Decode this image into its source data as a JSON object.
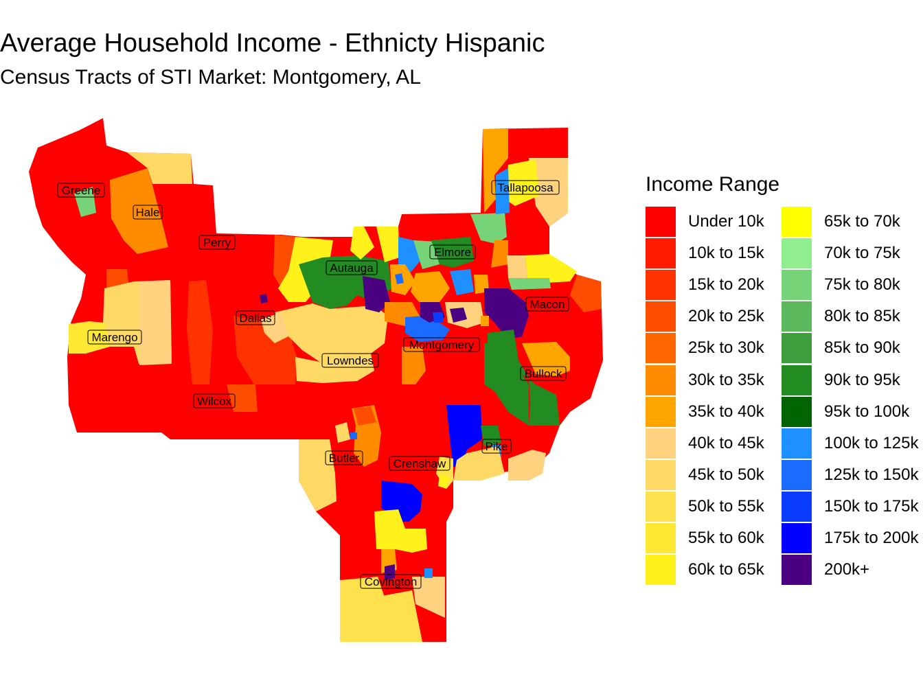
{
  "title": "Average Household Income - Ethnicty Hispanic",
  "subtitle": "Census Tracts of STI Market: Montgomery, AL",
  "legend": {
    "title": "Income Range",
    "items": [
      {
        "label": "Under 10k",
        "color": "#FF0000"
      },
      {
        "label": "10k to 15k",
        "color": "#FF1A00"
      },
      {
        "label": "15k to 20k",
        "color": "#FF3300"
      },
      {
        "label": "20k to 25k",
        "color": "#FF4D00"
      },
      {
        "label": "25k to 30k",
        "color": "#FF6600"
      },
      {
        "label": "30k to 35k",
        "color": "#FF8C00"
      },
      {
        "label": "35k to 40k",
        "color": "#FFA500"
      },
      {
        "label": "40k to 45k",
        "color": "#FFD27F"
      },
      {
        "label": "45k to 50k",
        "color": "#FFD966"
      },
      {
        "label": "50k to 55k",
        "color": "#FFE14D"
      },
      {
        "label": "55k to 60k",
        "color": "#FFE833"
      },
      {
        "label": "60k to 65k",
        "color": "#FFF21A"
      },
      {
        "label": "65k to 70k",
        "color": "#FFFF00"
      },
      {
        "label": "70k to 75k",
        "color": "#90EE90"
      },
      {
        "label": "75k to 80k",
        "color": "#77D377"
      },
      {
        "label": "80k to 85k",
        "color": "#5CB85C"
      },
      {
        "label": "85k to 90k",
        "color": "#3E9E3E"
      },
      {
        "label": "90k to 95k",
        "color": "#228B22"
      },
      {
        "label": "95k to 100k",
        "color": "#006400"
      },
      {
        "label": "100k to 125k",
        "color": "#1E90FF"
      },
      {
        "label": "125k to 150k",
        "color": "#1C6BFF"
      },
      {
        "label": "150k to 175k",
        "color": "#0A3DFF"
      },
      {
        "label": "175k to 200k",
        "color": "#0000FF"
      },
      {
        "label": "200k+",
        "color": "#4B0082"
      }
    ]
  },
  "counties": [
    {
      "name": "Greene"
    },
    {
      "name": "Hale"
    },
    {
      "name": "Perry"
    },
    {
      "name": "Autauga"
    },
    {
      "name": "Elmore"
    },
    {
      "name": "Tallapoosa"
    },
    {
      "name": "Macon"
    },
    {
      "name": "Dallas"
    },
    {
      "name": "Marengo"
    },
    {
      "name": "Montgomery"
    },
    {
      "name": "Lowndes"
    },
    {
      "name": "Bullock"
    },
    {
      "name": "Wilcox"
    },
    {
      "name": "Pike"
    },
    {
      "name": "Butler"
    },
    {
      "name": "Crenshaw"
    },
    {
      "name": "Covington"
    }
  ]
}
